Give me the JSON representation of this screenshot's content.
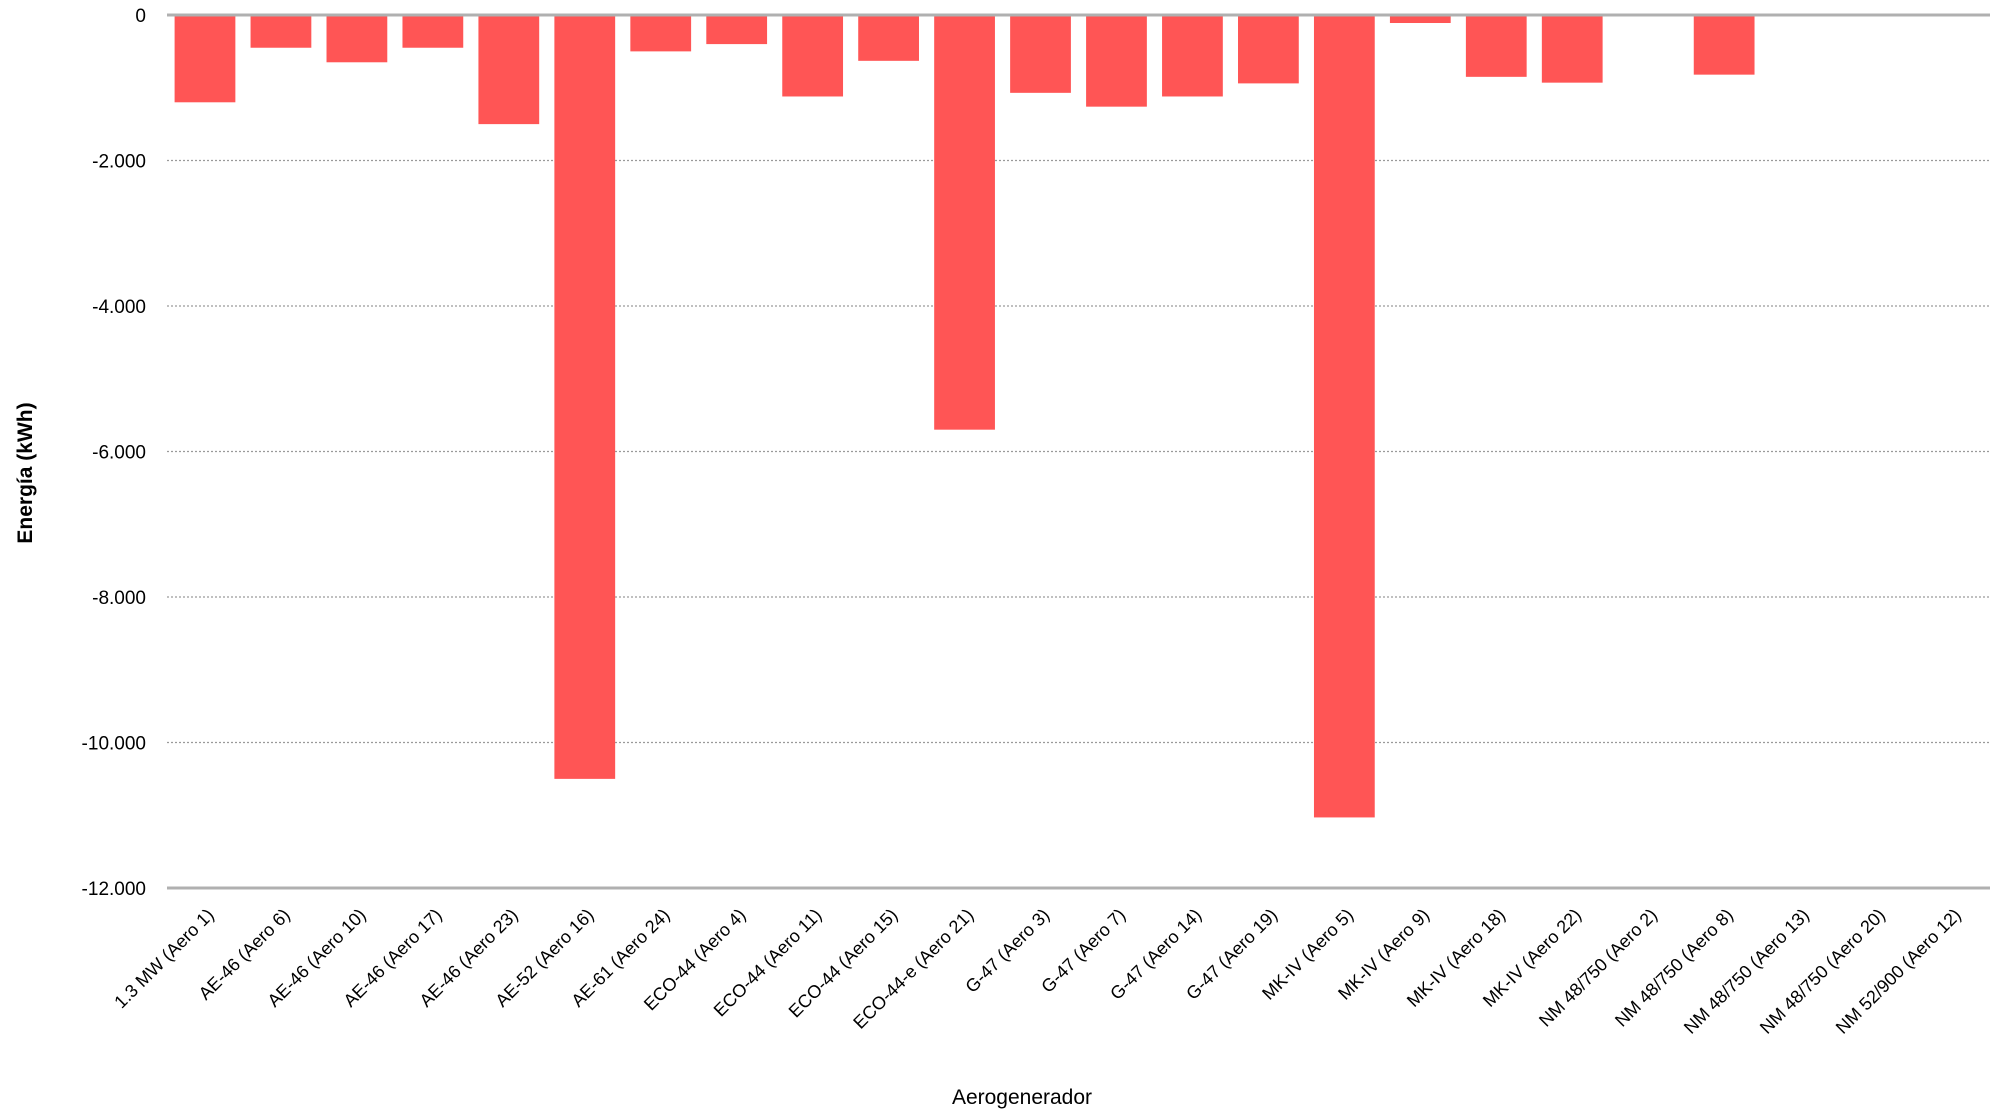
{
  "chart_data": {
    "type": "bar",
    "title": "",
    "xlabel": "Aerogenerador",
    "ylabel": "Energía  (kWh)",
    "ylim": [
      -12000,
      0
    ],
    "yticks": [
      0,
      -2000,
      -4000,
      -6000,
      -8000,
      -10000,
      -12000
    ],
    "ytick_labels": [
      "0",
      "-2.000",
      "-4.000",
      "-6.000",
      "-8.000",
      "-10.000",
      "-12.000"
    ],
    "grid": true,
    "legend": "none",
    "bar_color": "#ff5555",
    "categories": [
      "1.3 MW (Aero 1)",
      "AE-46 (Aero 6)",
      "AE-46 (Aero 10)",
      "AE-46 (Aero 17)",
      "AE-46 (Aero 23)",
      "AE-52 (Aero 16)",
      "AE-61 (Aero 24)",
      "ECO-44 (Aero 4)",
      "ECO-44 (Aero 11)",
      "ECO-44 (Aero 15)",
      "ECO-44-e (Aero 21)",
      "G-47 (Aero 3)",
      "G-47 (Aero 7)",
      "G-47 (Aero 14)",
      "G-47 (Aero 19)",
      "MK-IV (Aero 5)",
      "MK-IV (Aero 9)",
      "MK-IV (Aero 18)",
      "MK-IV (Aero 22)",
      "NM 48/750 (Aero 2)",
      "NM 48/750 (Aero 8)",
      "NM 48/750 (Aero 13)",
      "NM 48/750 (Aero 20)",
      "NM 52/900 (Aero 12)"
    ],
    "values": [
      -1200,
      -450,
      -650,
      -450,
      -1500,
      -10500,
      -500,
      -400,
      -1120,
      -630,
      -5700,
      -1070,
      -1260,
      -1120,
      -940,
      -11030,
      -110,
      -850,
      -930,
      0,
      -820,
      0,
      -20,
      0
    ]
  }
}
